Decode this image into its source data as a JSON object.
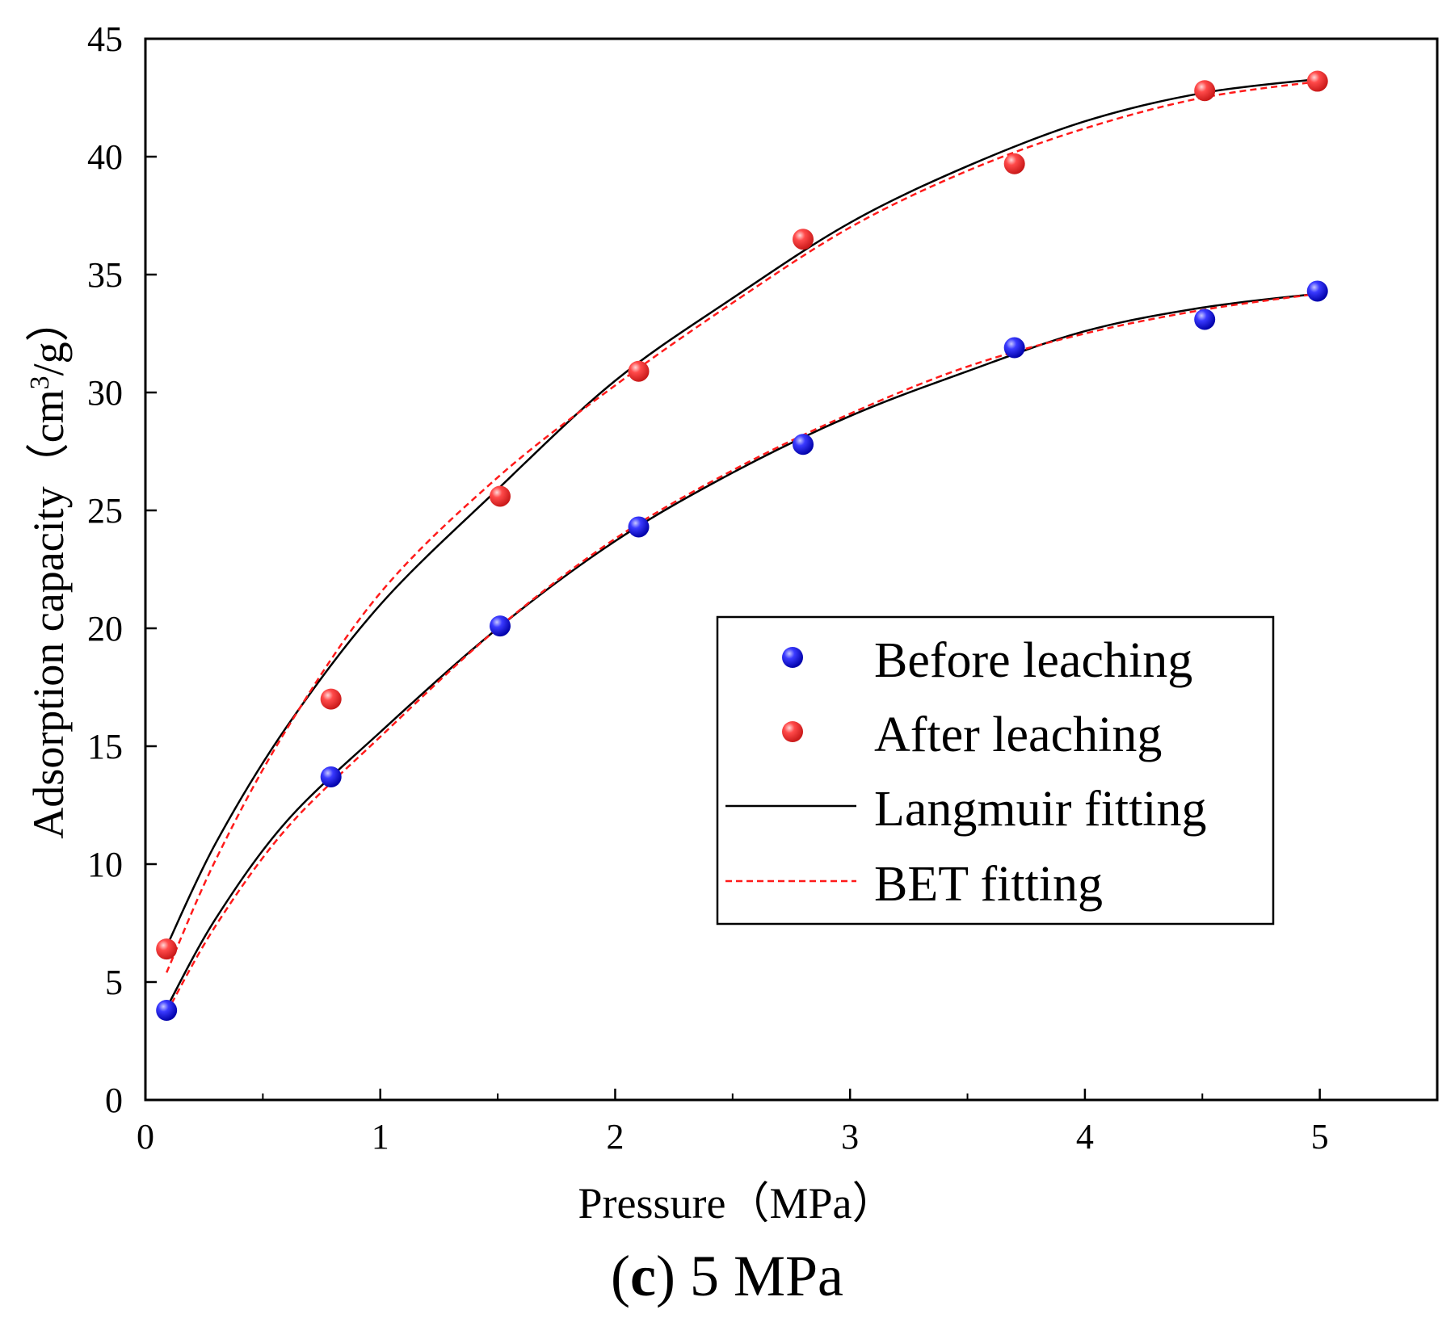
{
  "chart_data": {
    "type": "scatter",
    "title": "",
    "caption": {
      "prefix": "(",
      "letter": "c",
      "rest": ") 5 MPa"
    },
    "xlabel": "Pressure（MPa）",
    "ylabel": {
      "main": "Adsorption capacity（cm",
      "sup": "3",
      "end": "/g）"
    },
    "xlim": [
      0,
      5.5
    ],
    "ylim": [
      0,
      45
    ],
    "x_major_ticks": [
      0,
      1,
      2,
      3,
      4,
      5
    ],
    "x_minor_ticks": [
      0.5,
      1.5,
      2.5,
      3.5,
      4.5,
      5.5
    ],
    "x_tick_labels": [
      "0",
      "1",
      "2",
      "3",
      "4",
      "5"
    ],
    "y_major_ticks": [
      0,
      5,
      10,
      15,
      20,
      25,
      30,
      35,
      40,
      45
    ],
    "y_tick_labels": [
      "0",
      "5",
      "10",
      "15",
      "20",
      "25",
      "30",
      "35",
      "40",
      "45"
    ],
    "grid": false,
    "legend_position": "lower-right",
    "series": [
      {
        "name": "Before leaching",
        "kind": "points",
        "color": "#1a1adc",
        "x": [
          0.09,
          0.79,
          1.51,
          2.1,
          2.8,
          3.7,
          4.51,
          4.99
        ],
        "y": [
          3.8,
          13.7,
          20.1,
          24.3,
          27.8,
          31.9,
          33.1,
          34.3
        ]
      },
      {
        "name": "After leaching",
        "kind": "points",
        "color": "#e83a3a",
        "x": [
          0.09,
          0.79,
          1.51,
          2.1,
          2.8,
          3.7,
          4.51,
          4.99
        ],
        "y": [
          6.4,
          17.0,
          25.6,
          30.9,
          36.5,
          39.7,
          42.8,
          43.2
        ]
      },
      {
        "name": "Langmuir fitting",
        "kind": "line",
        "style": "solid",
        "color": "#000000",
        "curves": [
          {
            "x": [
              0.09,
              0.3,
              0.6,
              1.0,
              1.5,
              2.0,
              2.5,
              3.0,
              3.5,
              4.0,
              4.5,
              5.0
            ],
            "y": [
              6.5,
              10.9,
              15.8,
              21.0,
              25.9,
              30.5,
              34.0,
              37.2,
              39.6,
              41.5,
              42.7,
              43.3
            ]
          },
          {
            "x": [
              0.09,
              0.3,
              0.6,
              1.0,
              1.5,
              2.0,
              2.5,
              3.0,
              3.5,
              4.0,
              4.5,
              5.0
            ],
            "y": [
              3.9,
              7.7,
              11.8,
              15.6,
              20.0,
              23.7,
              26.6,
              29.0,
              30.9,
              32.6,
              33.6,
              34.2
            ]
          }
        ]
      },
      {
        "name": "BET fitting",
        "kind": "line",
        "style": "dashed",
        "color": "#ff1a1a",
        "curves": [
          {
            "x": [
              0.09,
              0.3,
              0.6,
              1.0,
              1.5,
              2.0,
              2.5,
              3.0,
              3.5,
              4.0,
              4.5,
              5.0
            ],
            "y": [
              5.4,
              10.2,
              15.7,
              21.5,
              26.4,
              30.3,
              33.8,
              37.0,
              39.4,
              41.2,
              42.5,
              43.2
            ]
          },
          {
            "x": [
              0.09,
              0.3,
              0.6,
              1.0,
              1.5,
              2.0,
              2.5,
              3.0,
              3.5,
              4.0,
              4.5,
              5.0
            ],
            "y": [
              3.7,
              7.4,
              11.5,
              15.4,
              20.0,
              23.8,
              26.7,
              29.1,
              31.1,
              32.5,
              33.5,
              34.2
            ]
          }
        ]
      }
    ]
  }
}
